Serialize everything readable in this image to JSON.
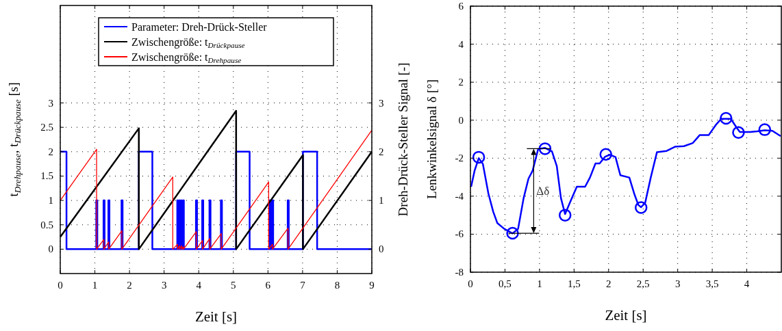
{
  "chart_data": [
    {
      "type": "line",
      "xlabel": "Zeit [s]",
      "ylabel": "t$_{Drehpause}$, t$_{Drückpause}$ [s]",
      "y2label": "Dreh-Drück-Steller Signal [-]",
      "xlim": [
        0,
        9
      ],
      "xticks": [
        0,
        1,
        2,
        3,
        4,
        5,
        6,
        7,
        8,
        9
      ],
      "ylim": [
        -0.5,
        5
      ],
      "yticks": [
        0,
        0.5,
        1,
        1.5,
        2,
        2.5,
        3
      ],
      "y2lim": [
        -0.5,
        5
      ],
      "y2ticks": [
        0,
        1,
        2,
        3
      ],
      "grid": true,
      "legend": "top",
      "line_style": "solid",
      "series": [
        {
          "name": "Parameter: Dreh-Drück-Steller",
          "type": "step",
          "axis": "y2",
          "color": "#0000ff",
          "x": [
            0,
            0.18,
            1.04,
            1.07,
            1.25,
            1.28,
            1.39,
            1.42,
            1.77,
            1.8,
            2.27,
            2.66,
            3.38,
            3.4,
            3.44,
            3.46,
            3.49,
            3.51,
            3.55,
            3.57,
            3.92,
            3.95,
            4.1,
            4.13,
            4.31,
            4.34,
            4.64,
            4.67,
            5.08,
            5.47,
            6.04,
            6.07,
            6.12,
            6.15,
            6.57,
            6.6,
            7.01,
            7.42,
            9
          ],
          "values": [
            2,
            0,
            1,
            0,
            1,
            0,
            1,
            0,
            1,
            0,
            2,
            0,
            1,
            0,
            1,
            0,
            1,
            0,
            1,
            0,
            1,
            0,
            1,
            0,
            1,
            0,
            1,
            0,
            2,
            0,
            1,
            0,
            1,
            0,
            1,
            0,
            2,
            0,
            0
          ]
        },
        {
          "name": "Zwischengröße: t$_{Drückpause}$",
          "color": "#000000",
          "x": [
            0,
            2.27,
            2.27,
            5.08,
            5.08,
            7.01,
            7.01,
            9
          ],
          "values": [
            0.25,
            2.48,
            0,
            2.84,
            0,
            1.93,
            0,
            2.0
          ]
        },
        {
          "name": "Zwischengröße: t$_{Drehpause}$",
          "color": "#ff0000",
          "x": [
            0,
            1.05,
            1.05,
            1.26,
            1.26,
            1.4,
            1.4,
            1.78,
            1.78,
            3.25,
            3.25,
            3.39,
            3.39,
            3.45,
            3.45,
            3.51,
            3.51,
            3.56,
            3.56,
            3.93,
            3.93,
            4.11,
            4.11,
            4.32,
            4.32,
            4.65,
            4.65,
            6.02,
            6.02,
            6.13,
            6.13,
            6.58,
            6.58,
            9
          ],
          "values": [
            1.0,
            2.05,
            0,
            0.2,
            0,
            0.15,
            0,
            0.38,
            0,
            1.48,
            0,
            0.1,
            0,
            0.07,
            0,
            0.07,
            0,
            0.05,
            0,
            0.36,
            0,
            0.18,
            0,
            0.22,
            0,
            0.32,
            0,
            1.38,
            0,
            0.1,
            0,
            0.43,
            0,
            2.44
          ]
        }
      ]
    },
    {
      "type": "line",
      "xlabel": "Zeit [s]",
      "ylabel": "Lenkwinkelsignal δ [°]",
      "xlim": [
        0,
        4.5
      ],
      "xticks": [
        0,
        {
          "value": 0.5,
          "label": "0,5"
        },
        1,
        {
          "value": 1.5,
          "label": "1,5"
        },
        2,
        {
          "value": 2.5,
          "label": "2,5"
        },
        3,
        {
          "value": 3.5,
          "label": "3,5"
        },
        4
      ],
      "ylim": [
        -8,
        6
      ],
      "yticks": [
        -8,
        -6,
        -4,
        -2,
        0,
        2,
        4,
        6
      ],
      "grid": true,
      "legend": false,
      "line_style": "solid",
      "annotations": [
        "Δδ"
      ],
      "series": [
        {
          "color": "#0000ff",
          "x": [
            0.01,
            0.06,
            0.12,
            0.18,
            0.26,
            0.33,
            0.39,
            0.49,
            0.61,
            0.69,
            0.77,
            0.84,
            0.9,
            0.98,
            1.08,
            1.18,
            1.25,
            1.31,
            1.37,
            1.44,
            1.54,
            1.66,
            1.73,
            1.81,
            1.87,
            1.95,
            2.02,
            2.1,
            2.17,
            2.3,
            2.37,
            2.43,
            2.47,
            2.53,
            2.61,
            2.7,
            2.84,
            2.96,
            3.09,
            3.22,
            3.32,
            3.45,
            3.55,
            3.63,
            3.77,
            3.85,
            3.9,
            4.05,
            4.15,
            4.26,
            4.37,
            4.49
          ],
          "values": [
            -3.5,
            -2.66,
            -2.0,
            -2.3,
            -3.86,
            -4.82,
            -5.42,
            -5.72,
            -5.96,
            -5.72,
            -4.1,
            -3.08,
            -2.66,
            -1.52,
            -1.46,
            -1.64,
            -2.42,
            -4.1,
            -4.94,
            -4.34,
            -3.5,
            -3.5,
            -3.02,
            -2.28,
            -2.28,
            -1.92,
            -1.82,
            -1.94,
            -2.9,
            -3.02,
            -3.86,
            -4.46,
            -4.58,
            -4.34,
            -3.02,
            -1.68,
            -1.62,
            -1.4,
            -1.37,
            -1.2,
            -0.78,
            -0.78,
            -0.26,
            0.07,
            0.07,
            -0.38,
            -0.62,
            -0.62,
            -0.59,
            -0.53,
            -0.56,
            -0.84
          ]
        },
        {
          "type": "scatter",
          "marker": "circle",
          "color": "#0000ff",
          "x": [
            0.12,
            0.61,
            1.08,
            1.37,
            1.96,
            2.47,
            3.7,
            3.88,
            4.26
          ],
          "values": [
            -1.95,
            -5.95,
            -1.5,
            -5.0,
            -1.8,
            -4.6,
            0.1,
            -0.65,
            -0.5
          ]
        }
      ]
    }
  ]
}
